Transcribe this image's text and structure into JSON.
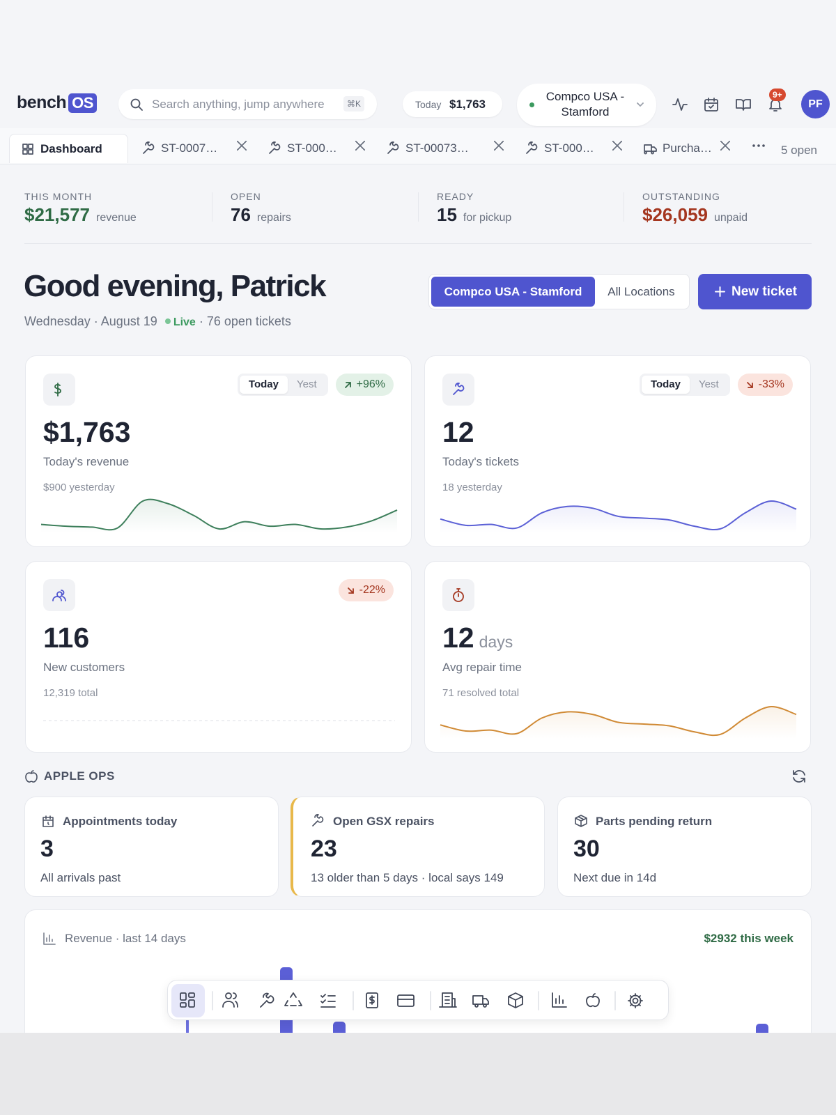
{
  "header": {
    "logo": "bench",
    "logo_badge": "OS",
    "search_placeholder": "Search anything, jump anywhere",
    "search_shortcut": "⌘K",
    "today_label": "Today",
    "today_value": "$1,763",
    "location": "Compco USA - Stamford",
    "notifications_badge": "9+",
    "avatar": "PF"
  },
  "tabs": {
    "items": [
      "Dashboard",
      "ST-0007…",
      "ST-000…",
      "ST-00073…",
      "ST-000…",
      "Purcha…"
    ],
    "count": "5 open"
  },
  "stats": [
    {
      "label": "THIS MONTH",
      "value": "$21,577",
      "unit": "revenue"
    },
    {
      "label": "OPEN",
      "value": "76",
      "unit": "repairs"
    },
    {
      "label": "READY",
      "value": "15",
      "unit": "for pickup"
    },
    {
      "label": "OUTSTANDING",
      "value": "$26,059",
      "unit": "unpaid"
    }
  ],
  "greeting": {
    "title": "Good evening, Patrick",
    "date": "Wednesday · August 19",
    "live": "Live",
    "open_tickets": "· 76 open tickets"
  },
  "location_toggle": [
    "Compco USA - Stamford",
    "All Locations"
  ],
  "new_ticket": "New ticket",
  "cards": [
    {
      "toggle": [
        "Today",
        "Yest"
      ],
      "change": "+96%",
      "value": "$1,763",
      "label": "Today's revenue",
      "sub": "$900 yesterday",
      "sparkline": [
        7,
        5,
        4,
        3,
        33,
        30,
        17,
        2,
        10,
        5,
        7,
        2,
        4,
        11,
        23
      ]
    },
    {
      "toggle": [
        "Today",
        "Yest"
      ],
      "change": "-33%",
      "value": "12",
      "label": "Today's tickets",
      "sub": "18 yesterday",
      "sparkline": [
        13,
        6,
        7,
        3,
        20,
        27,
        25,
        16,
        14,
        12,
        5,
        2,
        20,
        33,
        24
      ]
    },
    {
      "change": "-22%",
      "value": "116",
      "label": "New customers",
      "sub": "12,319 total"
    },
    {
      "value": "12",
      "unit": "days",
      "label": "Avg repair time",
      "sub": "71 resolved total",
      "sparkline": [
        15,
        8,
        9,
        5,
        23,
        30,
        27,
        18,
        16,
        14,
        7,
        4,
        23,
        36,
        27
      ]
    }
  ],
  "apple_ops": {
    "title": "APPLE OPS",
    "items": [
      {
        "title": "Appointments today",
        "value": "3",
        "sub": "All arrivals past"
      },
      {
        "title": "Open GSX repairs",
        "value": "23",
        "sub": "13 older than 5 days · local says 149"
      },
      {
        "title": "Parts pending return",
        "value": "30",
        "sub": "Next due in 14d"
      }
    ]
  },
  "revenue_chart": {
    "title": "Revenue · last 14 days",
    "summary": "$2932 this week"
  }
}
